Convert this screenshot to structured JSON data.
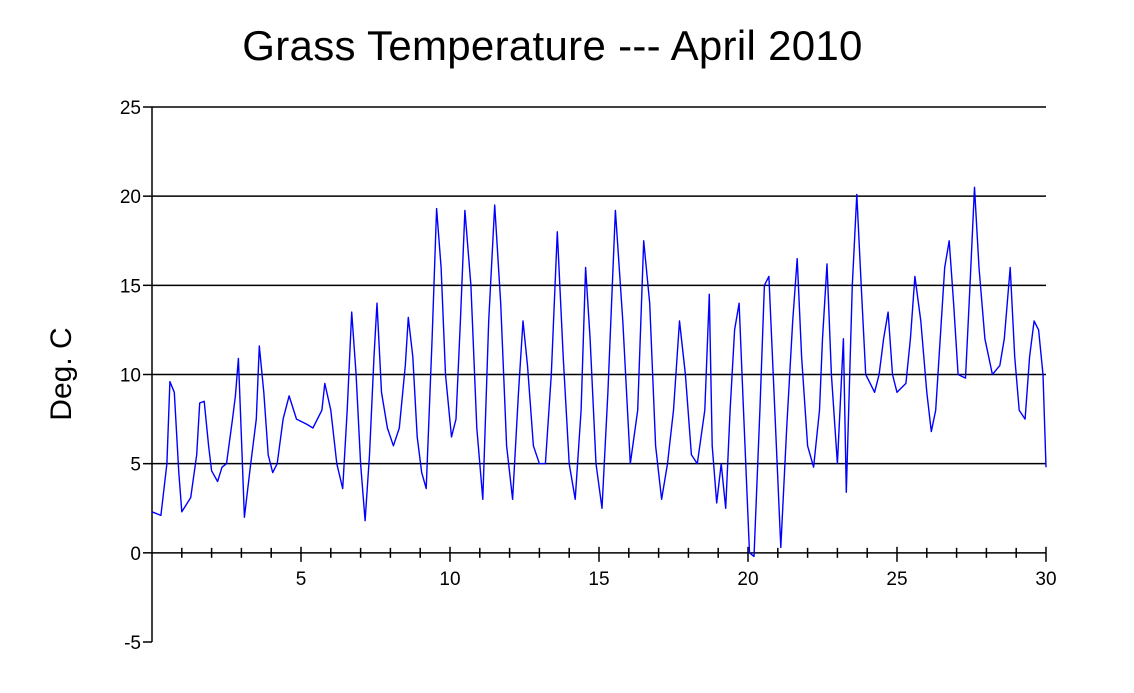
{
  "chart_data": {
    "type": "line",
    "title": "Grass Temperature --- April 2010",
    "xlabel": "",
    "ylabel": "Deg. C",
    "xlim": [
      0,
      30
    ],
    "ylim": [
      -5,
      25
    ],
    "x_ticks": [
      5,
      10,
      15,
      20,
      25,
      30
    ],
    "y_ticks": [
      -5,
      0,
      5,
      10,
      15,
      20,
      25
    ],
    "grid": "horizontal",
    "line_color": "#0000ff",
    "series": [
      {
        "points": [
          [
            0.0,
            2.3
          ],
          [
            0.3,
            2.1
          ],
          [
            0.5,
            5.0
          ],
          [
            0.6,
            9.6
          ],
          [
            0.75,
            9.0
          ],
          [
            0.9,
            4.5
          ],
          [
            1.0,
            2.3
          ],
          [
            1.3,
            3.1
          ],
          [
            1.5,
            5.5
          ],
          [
            1.6,
            8.4
          ],
          [
            1.75,
            8.5
          ],
          [
            1.9,
            6.0
          ],
          [
            2.0,
            4.6
          ],
          [
            2.2,
            4.0
          ],
          [
            2.35,
            4.8
          ],
          [
            2.5,
            5.0
          ],
          [
            2.7,
            7.5
          ],
          [
            2.8,
            8.8
          ],
          [
            2.9,
            10.9
          ],
          [
            3.0,
            6.5
          ],
          [
            3.1,
            2.0
          ],
          [
            3.3,
            4.8
          ],
          [
            3.5,
            7.5
          ],
          [
            3.6,
            11.6
          ],
          [
            3.75,
            9.0
          ],
          [
            3.9,
            5.5
          ],
          [
            4.05,
            4.5
          ],
          [
            4.2,
            5.0
          ],
          [
            4.4,
            7.5
          ],
          [
            4.6,
            8.8
          ],
          [
            4.85,
            7.5
          ],
          [
            5.2,
            7.2
          ],
          [
            5.4,
            7.0
          ],
          [
            5.7,
            8.0
          ],
          [
            5.8,
            9.5
          ],
          [
            6.0,
            8.0
          ],
          [
            6.2,
            5.0
          ],
          [
            6.4,
            3.6
          ],
          [
            6.55,
            8.0
          ],
          [
            6.7,
            13.5
          ],
          [
            6.85,
            10.0
          ],
          [
            7.0,
            5.0
          ],
          [
            7.15,
            1.8
          ],
          [
            7.3,
            5.5
          ],
          [
            7.45,
            11.0
          ],
          [
            7.55,
            14.0
          ],
          [
            7.7,
            9.0
          ],
          [
            7.9,
            7.0
          ],
          [
            8.1,
            6.0
          ],
          [
            8.3,
            7.0
          ],
          [
            8.5,
            10.5
          ],
          [
            8.6,
            13.2
          ],
          [
            8.75,
            11.0
          ],
          [
            8.9,
            6.5
          ],
          [
            9.05,
            4.5
          ],
          [
            9.2,
            3.6
          ],
          [
            9.4,
            12.0
          ],
          [
            9.55,
            19.3
          ],
          [
            9.7,
            16.0
          ],
          [
            9.85,
            10.0
          ],
          [
            10.05,
            6.5
          ],
          [
            10.2,
            7.5
          ],
          [
            10.35,
            13.0
          ],
          [
            10.5,
            19.2
          ],
          [
            10.7,
            15.0
          ],
          [
            10.9,
            7.0
          ],
          [
            11.1,
            3.0
          ],
          [
            11.3,
            13.0
          ],
          [
            11.5,
            19.5
          ],
          [
            11.7,
            14.0
          ],
          [
            11.9,
            6.0
          ],
          [
            12.1,
            3.0
          ],
          [
            12.3,
            9.0
          ],
          [
            12.45,
            13.0
          ],
          [
            12.6,
            10.5
          ],
          [
            12.8,
            6.0
          ],
          [
            13.0,
            5.0
          ],
          [
            13.2,
            5.0
          ],
          [
            13.4,
            10.0
          ],
          [
            13.6,
            18.0
          ],
          [
            13.8,
            11.0
          ],
          [
            14.0,
            5.0
          ],
          [
            14.2,
            3.0
          ],
          [
            14.4,
            8.0
          ],
          [
            14.55,
            16.0
          ],
          [
            14.7,
            12.0
          ],
          [
            14.9,
            5.0
          ],
          [
            15.1,
            2.5
          ],
          [
            15.3,
            9.0
          ],
          [
            15.55,
            19.2
          ],
          [
            15.8,
            13.0
          ],
          [
            16.05,
            5.0
          ],
          [
            16.3,
            8.0
          ],
          [
            16.5,
            17.5
          ],
          [
            16.7,
            14.0
          ],
          [
            16.9,
            6.0
          ],
          [
            17.1,
            3.0
          ],
          [
            17.3,
            5.0
          ],
          [
            17.5,
            8.0
          ],
          [
            17.7,
            13.0
          ],
          [
            17.9,
            10.0
          ],
          [
            18.1,
            5.5
          ],
          [
            18.3,
            5.0
          ],
          [
            18.55,
            8.0
          ],
          [
            18.7,
            14.5
          ],
          [
            18.8,
            6.0
          ],
          [
            18.95,
            2.8
          ],
          [
            19.1,
            5.0
          ],
          [
            19.25,
            2.5
          ],
          [
            19.4,
            8.0
          ],
          [
            19.55,
            12.5
          ],
          [
            19.7,
            14.0
          ],
          [
            19.85,
            8.0
          ],
          [
            20.05,
            0.0
          ],
          [
            20.2,
            -0.2
          ],
          [
            20.4,
            8.0
          ],
          [
            20.55,
            15.0
          ],
          [
            20.7,
            15.5
          ],
          [
            20.9,
            8.0
          ],
          [
            21.1,
            0.3
          ],
          [
            21.3,
            7.0
          ],
          [
            21.5,
            13.0
          ],
          [
            21.65,
            16.5
          ],
          [
            21.8,
            11.0
          ],
          [
            22.0,
            6.0
          ],
          [
            22.2,
            4.8
          ],
          [
            22.4,
            8.0
          ],
          [
            22.5,
            12.0
          ],
          [
            22.65,
            16.2
          ],
          [
            22.8,
            10.0
          ],
          [
            23.0,
            5.0
          ],
          [
            23.2,
            12.0
          ],
          [
            23.3,
            3.4
          ],
          [
            23.5,
            15.0
          ],
          [
            23.65,
            20.1
          ],
          [
            23.8,
            15.0
          ],
          [
            23.95,
            10.0
          ],
          [
            24.1,
            9.5
          ],
          [
            24.25,
            9.0
          ],
          [
            24.4,
            10.0
          ],
          [
            24.55,
            12.0
          ],
          [
            24.7,
            13.5
          ],
          [
            24.85,
            10.0
          ],
          [
            25.0,
            9.0
          ],
          [
            25.3,
            9.5
          ],
          [
            25.45,
            12.0
          ],
          [
            25.6,
            15.5
          ],
          [
            25.8,
            13.0
          ],
          [
            26.0,
            9.0
          ],
          [
            26.15,
            6.8
          ],
          [
            26.3,
            8.0
          ],
          [
            26.45,
            12.0
          ],
          [
            26.6,
            16.0
          ],
          [
            26.75,
            17.5
          ],
          [
            26.9,
            14.0
          ],
          [
            27.05,
            10.0
          ],
          [
            27.3,
            9.8
          ],
          [
            27.45,
            15.0
          ],
          [
            27.6,
            20.5
          ],
          [
            27.75,
            16.0
          ],
          [
            27.95,
            12.0
          ],
          [
            28.2,
            10.0
          ],
          [
            28.45,
            10.5
          ],
          [
            28.6,
            12.0
          ],
          [
            28.8,
            16.0
          ],
          [
            28.95,
            11.0
          ],
          [
            29.1,
            8.0
          ],
          [
            29.3,
            7.5
          ],
          [
            29.45,
            11.0
          ],
          [
            29.6,
            13.0
          ],
          [
            29.75,
            12.5
          ],
          [
            29.9,
            10.0
          ],
          [
            30.0,
            4.8
          ]
        ]
      }
    ]
  }
}
